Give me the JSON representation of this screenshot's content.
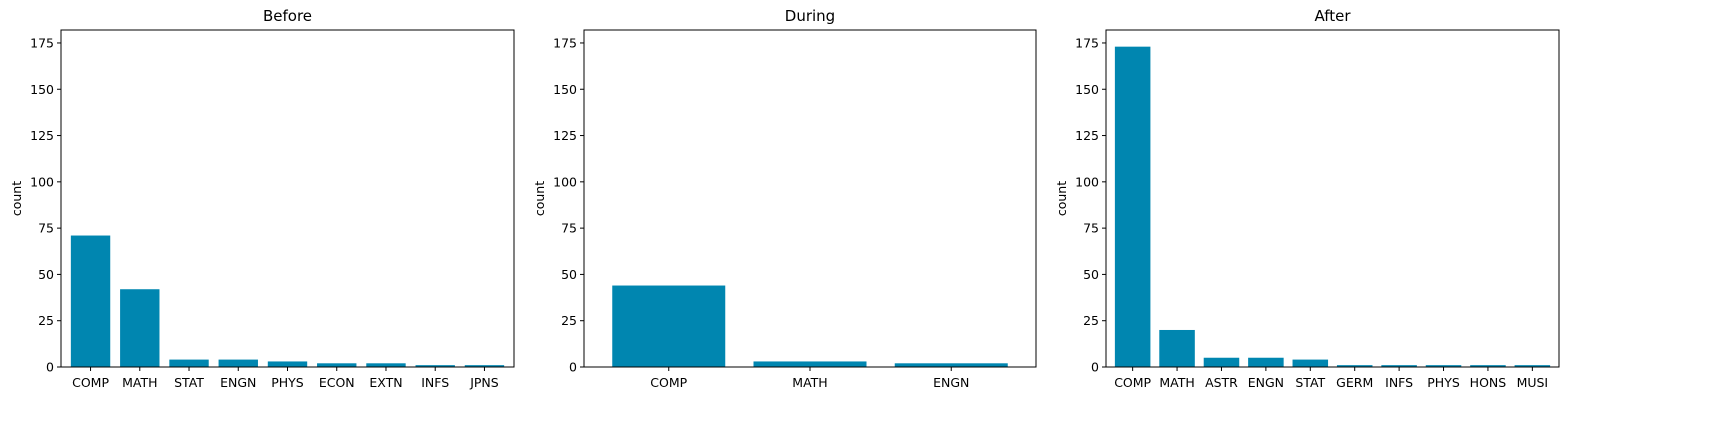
{
  "chart_data": [
    {
      "type": "bar",
      "title": "Before",
      "xlabel": "",
      "ylabel": "count",
      "ylim": [
        0,
        182
      ],
      "yticks": [
        0,
        25,
        50,
        75,
        100,
        125,
        150,
        175
      ],
      "grid": false,
      "legend": "none",
      "color": "#0086b0",
      "categories": [
        "COMP",
        "MATH",
        "STAT",
        "ENGN",
        "PHYS",
        "ECON",
        "EXTN",
        "INFS",
        "JPNS"
      ],
      "values": [
        71,
        42,
        4,
        4,
        3,
        2,
        2,
        1,
        1
      ]
    },
    {
      "type": "bar",
      "title": "During",
      "xlabel": "",
      "ylabel": "count",
      "ylim": [
        0,
        182
      ],
      "yticks": [
        0,
        25,
        50,
        75,
        100,
        125,
        150,
        175
      ],
      "grid": false,
      "legend": "none",
      "color": "#0086b0",
      "categories": [
        "COMP",
        "MATH",
        "ENGN"
      ],
      "values": [
        44,
        3,
        2
      ]
    },
    {
      "type": "bar",
      "title": "After",
      "xlabel": "",
      "ylabel": "count",
      "ylim": [
        0,
        182
      ],
      "yticks": [
        0,
        25,
        50,
        75,
        100,
        125,
        150,
        175
      ],
      "grid": false,
      "legend": "none",
      "color": "#0086b0",
      "categories": [
        "COMP",
        "MATH",
        "ASTR",
        "ENGN",
        "STAT",
        "GERM",
        "INFS",
        "PHYS",
        "HONS",
        "MUSI"
      ],
      "values": [
        173,
        20,
        5,
        5,
        4,
        1,
        1,
        1,
        1,
        1
      ]
    }
  ]
}
